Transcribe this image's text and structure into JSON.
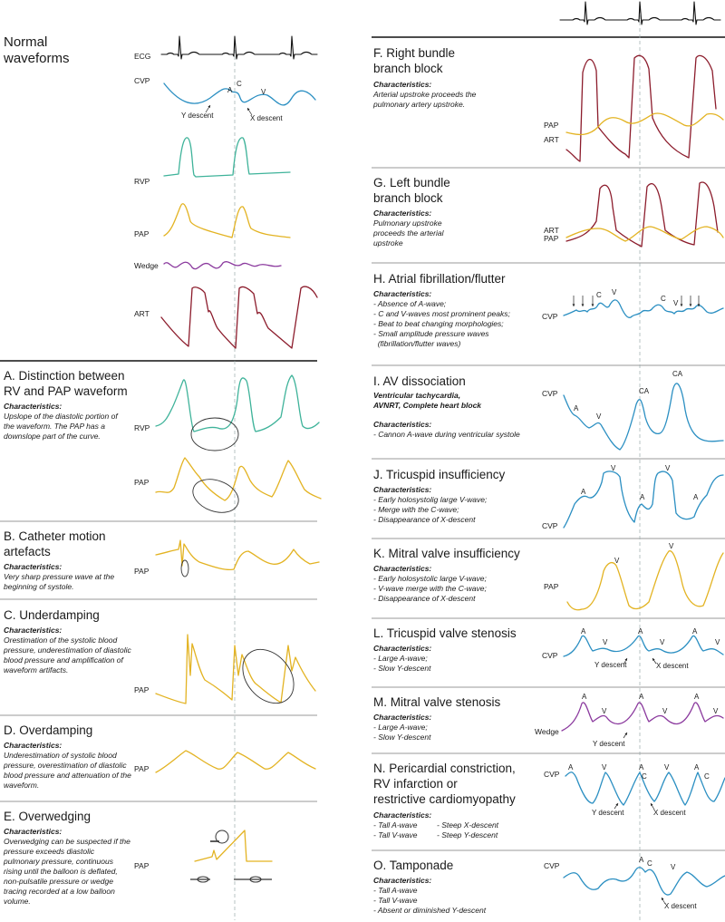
{
  "colors": {
    "cvp": "#2b8fc2",
    "rvp": "#3fb39a",
    "pap": "#e3b322",
    "wedge": "#8b3a9e",
    "art": "#8c1c2c",
    "ecg": "#111111"
  },
  "normal": {
    "title": "Normal\nwaveforms",
    "labels": {
      "ecg": "ECG",
      "cvp": "CVP",
      "rvp": "RVP",
      "pap": "PAP",
      "wedge": "Wedge",
      "art": "ART"
    },
    "peaks": {
      "a": "A",
      "c": "C",
      "v": "V"
    },
    "y_descent": "Y descent",
    "x_descent": "X descent"
  },
  "sections": {
    "a": {
      "title": "A. Distinction between\nRV and PAP waveform",
      "char": "Characteristics:",
      "desc": "Upslope of the diastolic portion of the waveform. The PAP has a downslope part of the curve.",
      "l1": "RVP",
      "l2": "PAP"
    },
    "b": {
      "title": "B. Catheter motion\nartefacts",
      "char": "Characteristics:",
      "desc": "Very sharp pressure wave at the beginning of systole.",
      "l1": "PAP"
    },
    "c": {
      "title": "C. Underdamping",
      "char": "Characteristics:",
      "desc": "Orestimation of the systolic blood pressure, underestimation of diastolic blood pressure and amplification of waveform artifacts.",
      "l1": "PAP"
    },
    "d": {
      "title": "D. Overdamping",
      "char": "Characteristics:",
      "desc": "Underestimation of systolic blood pressure, overestimation of diastolic blood pressure and attenuation of the waveform.",
      "l1": "PAP"
    },
    "e": {
      "title": "E. Overwedging",
      "char": "Characteristics:",
      "desc": "Overwedging can be suspected if the pressure exceeds diastolic pulmonary pressure, continuous rising until the balloon is deflated, non-pulsatile pressure or wedge tracing recorded at a low balloon volume.",
      "l1": "PAP"
    },
    "f": {
      "title": "F. Right bundle\nbranch block",
      "char": "Characteristics:",
      "desc": "Arterial upstroke proceeds the pulmonary artery upstroke.",
      "l1": "PAP",
      "l2": "ART"
    },
    "g": {
      "title": "G. Left bundle\nbranch block",
      "char": "Characteristics:",
      "desc": "Pulmonary upstroke proceeds the arterial upstroke",
      "l1": "ART",
      "l2": "PAP"
    },
    "h": {
      "title": "H. Atrial fibrillation/flutter",
      "char": "Characteristics:",
      "items": [
        "- Absence of A-wave;",
        "- C and V-waves most prominent peaks;",
        "- Beat to beat changing morphologies;",
        "- Small amplitude pressure waves",
        "  (fibrillation/flutter waves)"
      ],
      "l1": "CVP",
      "c": "C",
      "v": "V"
    },
    "i": {
      "title": "I. AV dissociation",
      "sub": "Ventricular tachycardia, AVNRT, Complete heart block",
      "char": "Characteristics:",
      "items": [
        "- Cannon A-wave during ventricular systole"
      ],
      "l1": "CVP",
      "a": "A",
      "v": "V",
      "ca": "CA"
    },
    "j": {
      "title": "J. Tricuspid insufficiency",
      "char": "Characteristics:",
      "items": [
        "- Early holosystolig large V-wave;",
        "- Merge with the C-wave;",
        "- Disappearance of X-descent"
      ],
      "l1": "CVP",
      "a": "A",
      "v": "V"
    },
    "k": {
      "title": "K. Mitral valve insufficiency",
      "char": "Characteristics:",
      "items": [
        "- Early holosystolic large V-wave;",
        "- V-wave merge with the C-wave;",
        "- Disappearance of X-descent"
      ],
      "l1": "PAP",
      "v": "V"
    },
    "l": {
      "title": "L. Tricuspid valve stenosis",
      "char": "Characteristics:",
      "items": [
        "- Large A-wave;",
        "- Slow Y-descent"
      ],
      "l1": "CVP",
      "a": "A",
      "v": "V",
      "y": "Y descent",
      "x": "X descent"
    },
    "m": {
      "title": "M. Mitral valve stenosis",
      "char": "Characteristics:",
      "items": [
        "- Large A-wave;",
        "- Slow Y-descent"
      ],
      "l1": "Wedge",
      "a": "A",
      "v": "V",
      "y": "Y descent"
    },
    "n": {
      "title": "N. Pericardial constriction,\nRV infarction or\nrestrictive cardiomyopathy",
      "char": "Characteristics:",
      "items": [
        "- Tall A-wave",
        "- Tall V-wave"
      ],
      "items2": [
        "- Steep X-descent",
        "- Steep Y-descent"
      ],
      "l1": "CVP",
      "a": "A",
      "v": "V",
      "c": "C",
      "y": "Y descent",
      "x": "X descent"
    },
    "o": {
      "title": "O. Tamponade",
      "char": "Characteristics:",
      "items": [
        "- Tall A-wave",
        "- Tall V-wave",
        "- Absent or diminished Y-descent"
      ],
      "l1": "CVP",
      "a": "A",
      "c": "C",
      "v": "V",
      "x": "X descent"
    }
  }
}
